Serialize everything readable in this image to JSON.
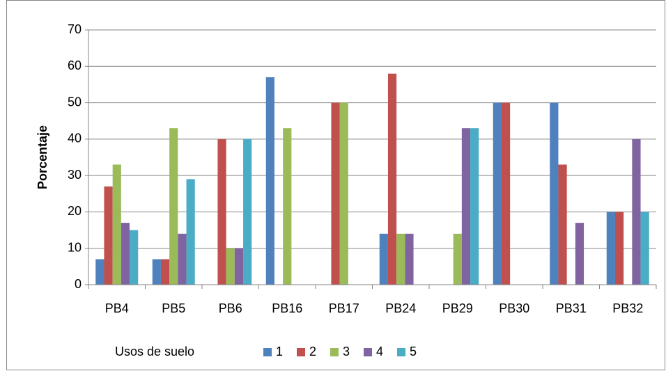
{
  "chart_data": {
    "type": "bar",
    "categories": [
      "PB4",
      "PB5",
      "PB6",
      "PB16",
      "PB17",
      "PB24",
      "PB29",
      "PB30",
      "PB31",
      "PB32"
    ],
    "series": [
      {
        "name": "1",
        "color": "#4f81bd",
        "values": [
          7,
          7,
          0,
          57,
          0,
          14,
          0,
          50,
          50,
          20
        ]
      },
      {
        "name": "2",
        "color": "#c0504d",
        "values": [
          27,
          7,
          40,
          0,
          50,
          58,
          0,
          50,
          33,
          20
        ]
      },
      {
        "name": "3",
        "color": "#9bbb59",
        "values": [
          33,
          43,
          10,
          43,
          50,
          14,
          14,
          0,
          0,
          0
        ]
      },
      {
        "name": "4",
        "color": "#8064a2",
        "values": [
          17,
          14,
          10,
          0,
          0,
          14,
          43,
          0,
          17,
          40
        ]
      },
      {
        "name": "5",
        "color": "#4bacc6",
        "values": [
          15,
          29,
          40,
          0,
          0,
          0,
          43,
          0,
          0,
          20
        ]
      }
    ],
    "y_label": "Porcentaje",
    "legend_title": "Usos de suelo",
    "legend": "bottom",
    "ylim": [
      0,
      70
    ],
    "yticks": [
      0,
      10,
      20,
      30,
      40,
      50,
      60,
      70
    ],
    "grid": true
  }
}
